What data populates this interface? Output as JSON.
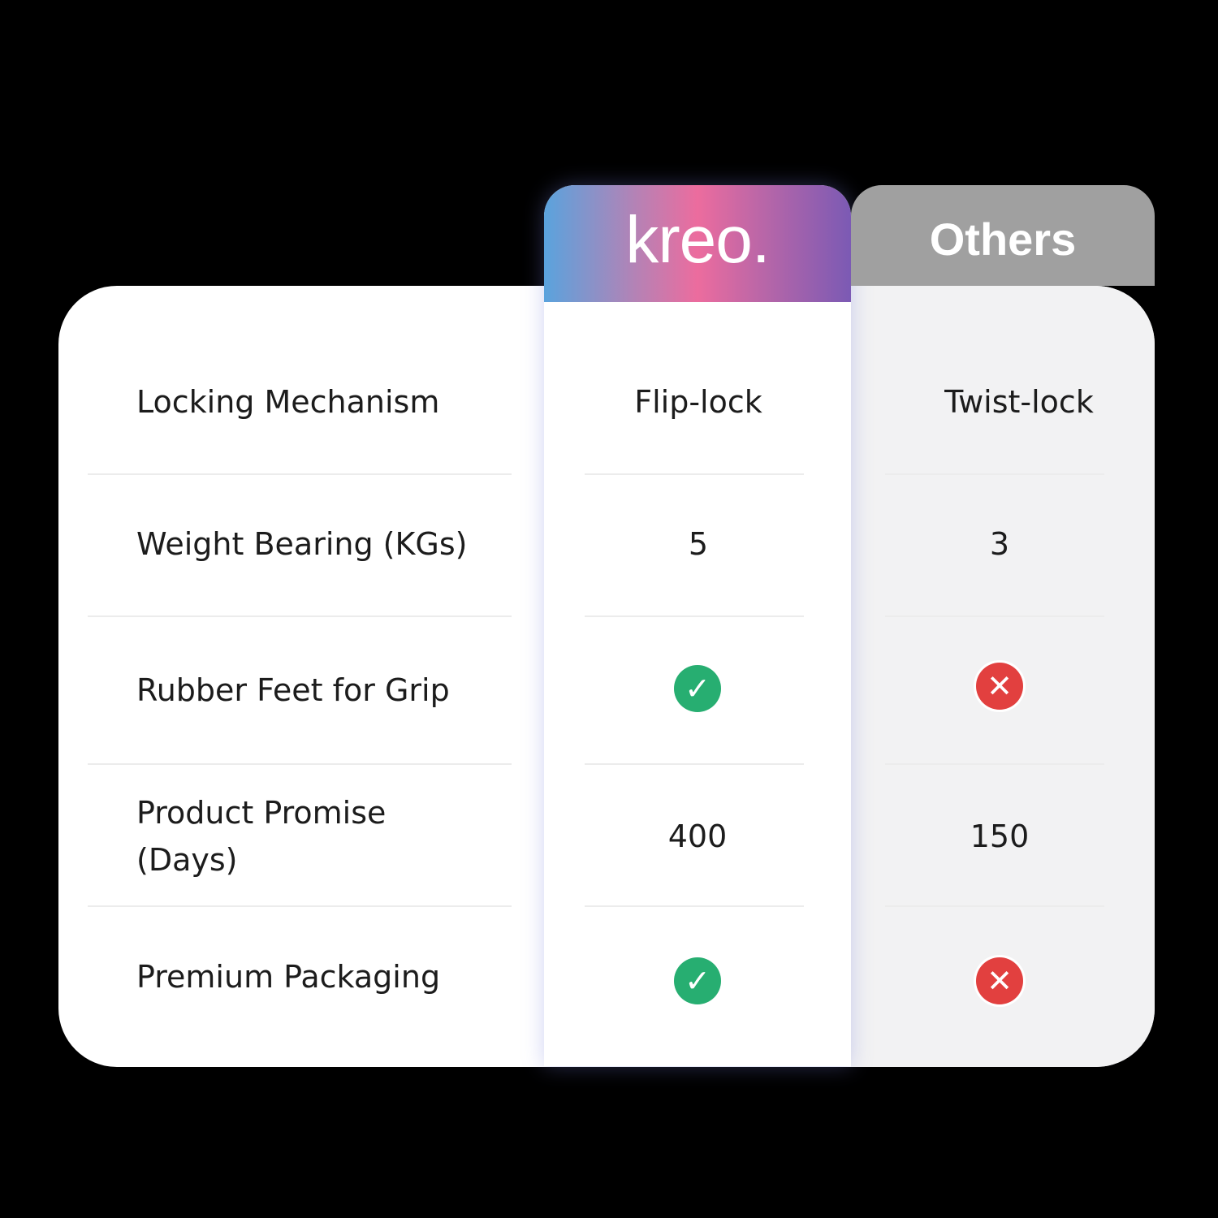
{
  "header": {
    "brand": "kreo.",
    "competitor": "Others"
  },
  "rows": [
    {
      "label": "Locking Mechanism",
      "kreo": "Flip-lock",
      "others": "Twist-lock"
    },
    {
      "label": "Weight Bearing (KGs)",
      "kreo": "5",
      "others": "3"
    },
    {
      "label": "Rubber Feet for Grip",
      "kreo_icon": "check-icon",
      "others_icon": "cross-icon"
    },
    {
      "label": "Product Promise (Days)",
      "kreo": "400",
      "others": "150"
    },
    {
      "label": "Premium Packaging",
      "kreo_icon": "check-icon",
      "others_icon": "cross-icon"
    }
  ],
  "colors": {
    "check": "#27ae71",
    "cross": "#e2403f",
    "others_header": "#a0a0a0",
    "background": "#000000"
  }
}
